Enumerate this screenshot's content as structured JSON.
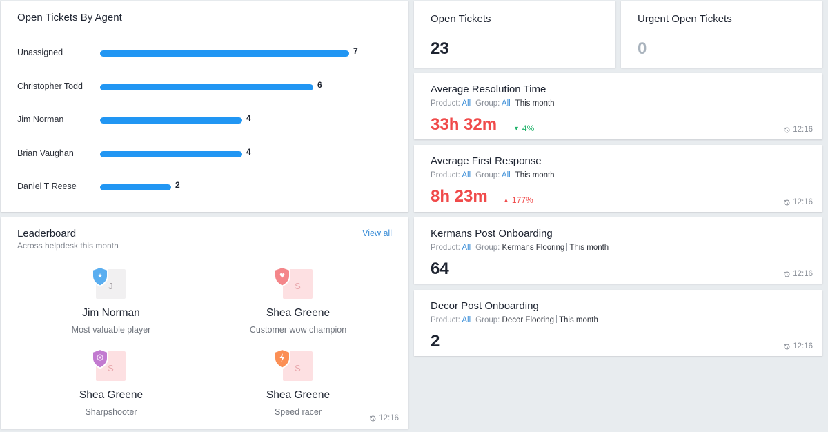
{
  "agents_card": {
    "title": "Open Tickets By Agent",
    "chart_data": {
      "type": "bar",
      "orientation": "horizontal",
      "title": "Open Tickets By Agent",
      "categories": [
        "Unassigned",
        "Christopher Todd",
        "Jim Norman",
        "Brian Vaughan",
        "Daniel T Reese"
      ],
      "values": [
        7,
        6,
        4,
        4,
        2
      ],
      "bar_color": "#2196f3",
      "xlim": [
        0,
        7
      ]
    }
  },
  "open_tickets": {
    "title": "Open Tickets",
    "value": "23"
  },
  "urgent_open_tickets": {
    "title": "Urgent Open Tickets",
    "value": "0"
  },
  "avg_resolution": {
    "title": "Average Resolution Time",
    "product_label": "Product:",
    "product_value": "All",
    "group_label": "Group:",
    "group_value": "All",
    "period": "This month",
    "value": "33h 32m",
    "delta": "4%",
    "delta_direction": "down",
    "delta_color": "#22b36b",
    "refreshed": "12:16"
  },
  "avg_first_response": {
    "title": "Average First Response",
    "product_label": "Product:",
    "product_value": "All",
    "group_label": "Group:",
    "group_value": "All",
    "period": "This month",
    "value": "8h 23m",
    "delta": "177%",
    "delta_direction": "up",
    "delta_color": "#f04a4a",
    "refreshed": "12:16"
  },
  "kermans": {
    "title": "Kermans Post Onboarding",
    "product_label": "Product:",
    "product_value": "All",
    "group_label": "Group:",
    "group_value": "Kermans Flooring",
    "period": "This month",
    "value": "64",
    "refreshed": "12:16"
  },
  "decor": {
    "title": "Decor Post Onboarding",
    "product_label": "Product:",
    "product_value": "All",
    "group_label": "Group:",
    "group_value": "Decor Flooring",
    "period": "This month",
    "value": "2",
    "refreshed": "12:16"
  },
  "leaderboard": {
    "title": "Leaderboard",
    "subtitle": "Across helpdesk this month",
    "view_all": "View all",
    "refreshed": "12:16",
    "leaders": [
      {
        "initial": "J",
        "name": "Jim Norman",
        "award": "Most valuable player",
        "badge_icon": "star-shield-icon",
        "badge_color": "#5aaef0",
        "avatar_bg": "#f1f0f1"
      },
      {
        "initial": "S",
        "name": "Shea Greene",
        "award": "Customer wow champion",
        "badge_icon": "heart-shield-icon",
        "badge_color": "#f4868a",
        "avatar_bg": "#fde0e2"
      },
      {
        "initial": "S",
        "name": "Shea Greene",
        "award": "Sharpshooter",
        "badge_icon": "target-shield-icon",
        "badge_color": "#c27ad0",
        "avatar_bg": "#fde0e2"
      },
      {
        "initial": "S",
        "name": "Shea Greene",
        "award": "Speed racer",
        "badge_icon": "bolt-shield-icon",
        "badge_color": "#fb8f55",
        "avatar_bg": "#fde0e2"
      }
    ]
  },
  "colors": {
    "value_red": "#f04a4a",
    "value_dark": "#1d2330",
    "value_muted": "#a9b3bd",
    "link": "#3d8fd8"
  }
}
